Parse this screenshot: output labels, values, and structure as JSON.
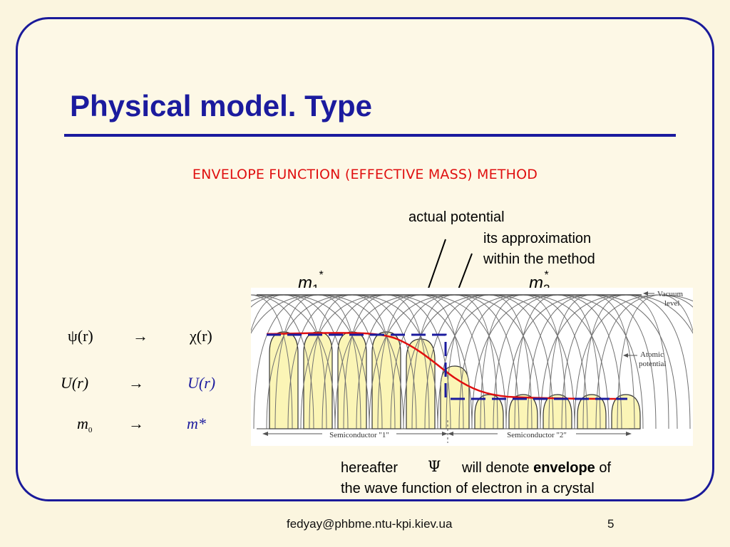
{
  "slide": {
    "title": "Physical model. Type",
    "subtitle": "ENVELOPE FUNCTION (EFFECTIVE MASS) METHOD"
  },
  "annotations": {
    "actual_potential": "actual potential",
    "approximation_line1": "its approximation",
    "approximation_line2": "within the method",
    "m1_letter": "m",
    "m1_sub": "1",
    "m1_sup": "*",
    "m2_letter": "m",
    "m2_sub": "2",
    "m2_sup": "*"
  },
  "equations": {
    "row1_left": "ψ(r)",
    "row1_arrow": "→",
    "row1_right": "χ(r)",
    "row2_left": "U(r)",
    "row2_arrow": "→",
    "row2_right": "U(r)",
    "row3_left_letter": "m",
    "row3_left_sub": "0",
    "row3_arrow": "→",
    "row3_right": "m*"
  },
  "diagram_labels": {
    "vacuum_level": [
      "Vacuum",
      "level"
    ],
    "atomic_potential": [
      "Atomic",
      "potential"
    ],
    "semiconductor1": "Semiconductor \"1\"",
    "semiconductor2": "Semiconductor \"2\""
  },
  "bottom_note": {
    "prefix": "hereafter",
    "symbol": "Ψ",
    "middle": "will denote",
    "bold": "envelope",
    "suffix": "of",
    "line2": "the wave function of electron in a crystal"
  },
  "footer": {
    "email": "fedyay@phbme.ntu-kpi.kiev.ua",
    "page_number": "5"
  },
  "colors": {
    "frame": "#1a1a9a",
    "title": "#1b1b9e",
    "subtitle": "#e01010",
    "actual_potential_curve": "#e01010",
    "approximation_line": "#1b1b9e",
    "well_fill": "#fbf5b6",
    "background": "#fbf5df"
  }
}
